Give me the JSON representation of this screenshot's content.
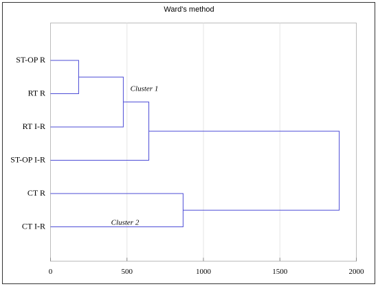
{
  "chart_data": {
    "type": "dendrogram",
    "title": "Ward's method",
    "leaves": [
      "ST-OP R",
      "RT R",
      "RT I-R",
      "ST-OP I-R",
      "CT R",
      "CT I-R"
    ],
    "merges": [
      {
        "left": 0,
        "right": 1,
        "height": 184
      },
      {
        "left": 6,
        "right": 2,
        "height": 476
      },
      {
        "left": 7,
        "right": 3,
        "height": 643
      },
      {
        "left": 4,
        "right": 5,
        "height": 867
      },
      {
        "left": 8,
        "right": 9,
        "height": 1888
      }
    ],
    "annotations": [
      "Cluster 1",
      "Cluster 2"
    ],
    "color": "#4b4bd6",
    "xlim": [
      0,
      2000
    ],
    "xticks": [
      0,
      500,
      1000,
      1500,
      2000
    ],
    "grid": true
  }
}
